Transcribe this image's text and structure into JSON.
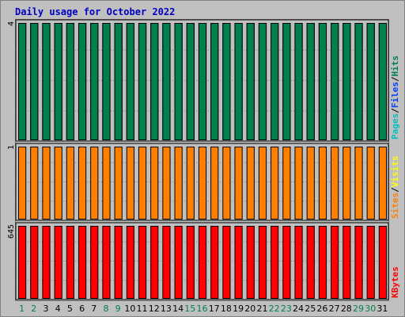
{
  "title": "Daily usage for October 2022",
  "chart_data": [
    {
      "type": "bar",
      "panel": "top",
      "categories": [
        "1",
        "2",
        "3",
        "4",
        "5",
        "6",
        "7",
        "8",
        "9",
        "10",
        "11",
        "12",
        "13",
        "14",
        "15",
        "16",
        "17",
        "18",
        "19",
        "20",
        "21",
        "22",
        "23",
        "24",
        "25",
        "26",
        "27",
        "28",
        "29",
        "30",
        "31"
      ],
      "series": [
        {
          "name": "Pages",
          "color": "#00c0c0",
          "values": [
            0,
            0,
            0,
            0,
            0,
            0,
            0,
            0,
            0,
            0,
            0,
            0,
            0,
            0,
            0,
            0,
            0,
            0,
            0,
            0,
            0,
            0,
            0,
            0,
            0,
            0,
            0,
            0,
            0,
            0,
            0
          ]
        },
        {
          "name": "Files",
          "color": "#0040ff",
          "values": [
            4,
            4,
            4,
            4,
            4,
            4,
            4,
            4,
            4,
            4,
            4,
            4,
            4,
            4,
            4,
            4,
            4,
            4,
            4,
            4,
            4,
            4,
            4,
            4,
            4,
            4,
            4,
            4,
            4,
            4,
            4
          ]
        },
        {
          "name": "Hits",
          "color": "#00804c",
          "values": [
            4,
            4,
            4,
            4,
            4,
            4,
            4,
            4,
            4,
            4,
            4,
            4,
            4,
            4,
            4,
            4,
            4,
            4,
            4,
            4,
            4,
            4,
            4,
            4,
            4,
            4,
            4,
            4,
            4,
            4,
            4
          ]
        }
      ],
      "ymax_label": "4",
      "ylim": [
        0,
        4
      ]
    },
    {
      "type": "bar",
      "panel": "middle",
      "categories": [
        "1",
        "2",
        "3",
        "4",
        "5",
        "6",
        "7",
        "8",
        "9",
        "10",
        "11",
        "12",
        "13",
        "14",
        "15",
        "16",
        "17",
        "18",
        "19",
        "20",
        "21",
        "22",
        "23",
        "24",
        "25",
        "26",
        "27",
        "28",
        "29",
        "30",
        "31"
      ],
      "series": [
        {
          "name": "Sites",
          "color": "#ff8000",
          "values": [
            1,
            1,
            1,
            1,
            1,
            1,
            1,
            1,
            1,
            1,
            1,
            1,
            1,
            1,
            1,
            1,
            1,
            1,
            1,
            1,
            1,
            1,
            1,
            1,
            1,
            1,
            1,
            1,
            1,
            1,
            1
          ]
        },
        {
          "name": "Visits",
          "color": "#ffff00",
          "values": [
            0,
            0,
            0,
            0,
            0,
            0,
            0,
            0,
            0,
            0,
            0,
            0,
            0,
            0,
            0,
            0,
            0,
            0,
            0,
            0,
            0,
            0,
            0,
            0,
            0,
            0,
            0,
            0,
            0,
            0,
            0
          ]
        }
      ],
      "ymax_label": "1",
      "ylim": [
        0,
        1
      ]
    },
    {
      "type": "bar",
      "panel": "bottom",
      "categories": [
        "1",
        "2",
        "3",
        "4",
        "5",
        "6",
        "7",
        "8",
        "9",
        "10",
        "11",
        "12",
        "13",
        "14",
        "15",
        "16",
        "17",
        "18",
        "19",
        "20",
        "21",
        "22",
        "23",
        "24",
        "25",
        "26",
        "27",
        "28",
        "29",
        "30",
        "31"
      ],
      "series": [
        {
          "name": "KBytes",
          "color": "#ff0000",
          "values": [
            645,
            645,
            645,
            645,
            645,
            645,
            645,
            645,
            645,
            645,
            645,
            645,
            645,
            645,
            645,
            645,
            645,
            645,
            645,
            645,
            645,
            645,
            645,
            645,
            645,
            645,
            645,
            645,
            645,
            645,
            645
          ]
        }
      ],
      "ymax_label": "645",
      "ylim": [
        0,
        645
      ]
    }
  ],
  "day_colors": {
    "weekday": "#000000",
    "weekend": "#00804c",
    "weekend_days": [
      1,
      2,
      8,
      9,
      15,
      16,
      22,
      23,
      29,
      30
    ]
  },
  "right_legend": {
    "top": [
      {
        "text": "Pages",
        "color": "#00c0c0"
      },
      {
        "text": "/",
        "color": "#000000"
      },
      {
        "text": "Files",
        "color": "#0040ff"
      },
      {
        "text": "/",
        "color": "#000000"
      },
      {
        "text": "Hits",
        "color": "#00804c"
      }
    ],
    "middle": [
      {
        "text": "Sites",
        "color": "#ff8000"
      },
      {
        "text": "/",
        "color": "#000000"
      },
      {
        "text": "Visits",
        "color": "#ffff00"
      }
    ],
    "bottom": [
      {
        "text": "KBytes",
        "color": "#ff0000"
      }
    ]
  }
}
